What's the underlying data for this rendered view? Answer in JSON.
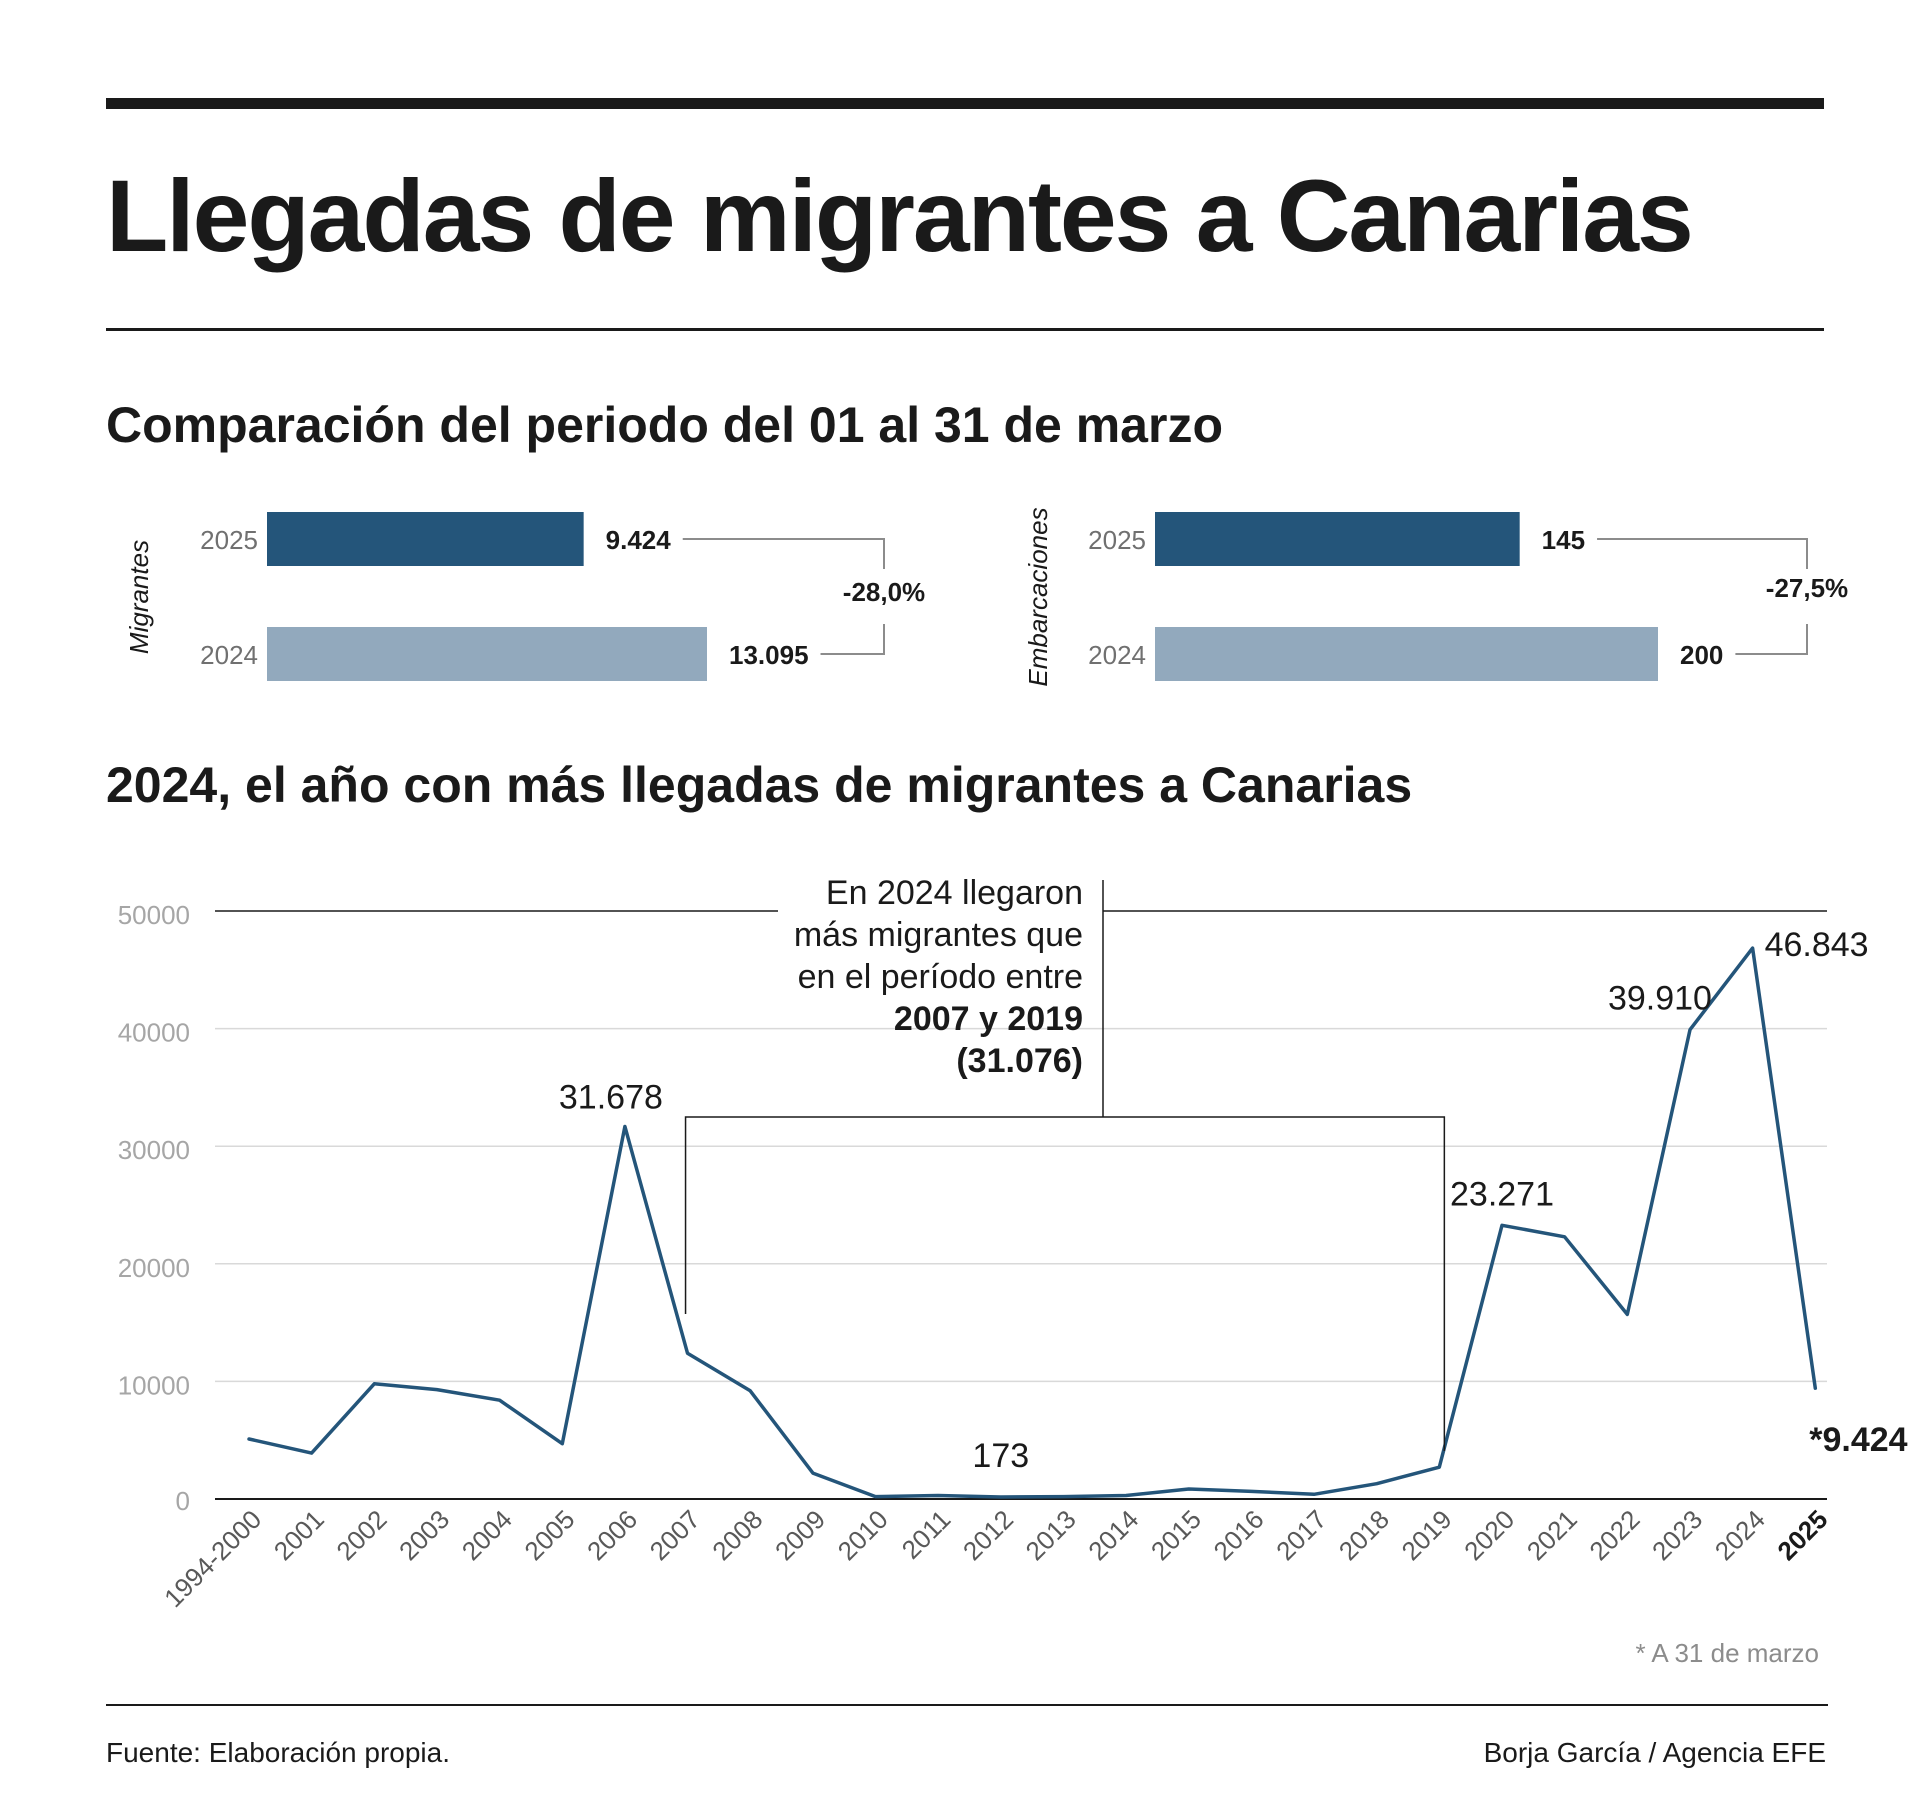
{
  "header": {
    "title": "Llegadas de migrantes a Canarias"
  },
  "comparison": {
    "subtitle": "Comparación del periodo del 01 al 31 de marzo",
    "panels": [
      {
        "label": "Migrantes",
        "bars": [
          {
            "year": "2025",
            "value": 9424,
            "value_label": "9.424"
          },
          {
            "year": "2024",
            "value": 13095,
            "value_label": "13.095"
          }
        ],
        "change_label": "-28,0%"
      },
      {
        "label": "Embarcaciones",
        "bars": [
          {
            "year": "2025",
            "value": 145,
            "value_label": "145"
          },
          {
            "year": "2024",
            "value": 200,
            "value_label": "200"
          }
        ],
        "change_label": "-27,5%"
      }
    ]
  },
  "colors": {
    "bar_2025": "#24557a",
    "bar_2024": "#92a9bd",
    "line": "#24557a",
    "grid": "#d9d9d9",
    "axis": "#1a1a1a",
    "tick_label": "#a6a6a6",
    "text": "#1a1a1a"
  },
  "chart_data": {
    "type": "line",
    "title": "2024, el año con más llegadas de migrantes a Canarias",
    "categories": [
      "1994-2000",
      "2001",
      "2002",
      "2003",
      "2004",
      "2005",
      "2006",
      "2007",
      "2008",
      "2009",
      "2010",
      "2011",
      "2012",
      "2013",
      "2014",
      "2015",
      "2016",
      "2017",
      "2018",
      "2019",
      "2020",
      "2021",
      "2022",
      "2023",
      "2024",
      "2025"
    ],
    "values": [
      5100,
      3900,
      9800,
      9300,
      8400,
      4700,
      31678,
      12400,
      9200,
      2200,
      200,
      300,
      173,
      200,
      300,
      850,
      650,
      400,
      1300,
      2700,
      23271,
      22300,
      15700,
      39910,
      46843,
      9424
    ],
    "yticks": [
      0,
      10000,
      20000,
      30000,
      40000,
      50000
    ],
    "ylim": [
      0,
      50000
    ],
    "xlabel": "",
    "ylabel": "",
    "grid": true,
    "highlighted_category": "2025",
    "point_labels": [
      {
        "category": "2006",
        "text": "31.678",
        "bold": false
      },
      {
        "category": "2012",
        "text": "173",
        "bold": false
      },
      {
        "category": "2020",
        "text": "23.271",
        "bold": false
      },
      {
        "category": "2023",
        "text": "39.910",
        "bold": false
      },
      {
        "category": "2024",
        "text": "46.843",
        "bold": false
      },
      {
        "category": "2025",
        "text": "*9.424",
        "bold": true
      }
    ],
    "annotation": {
      "lines": [
        {
          "text": "En 2024 llegaron",
          "bold": false
        },
        {
          "text": "más migrantes que",
          "bold": false
        },
        {
          "text": "en el período entre",
          "bold": false
        },
        {
          "text": "2007 y 2019",
          "bold": true
        },
        {
          "text": "(31.076)",
          "bold": true
        }
      ],
      "bracket_from": "2007",
      "bracket_to": "2019"
    },
    "footnote": "* A 31 de marzo"
  },
  "footer": {
    "source": "Fuente: Elaboración propia.",
    "credit": "Borja García / Agencia EFE"
  }
}
